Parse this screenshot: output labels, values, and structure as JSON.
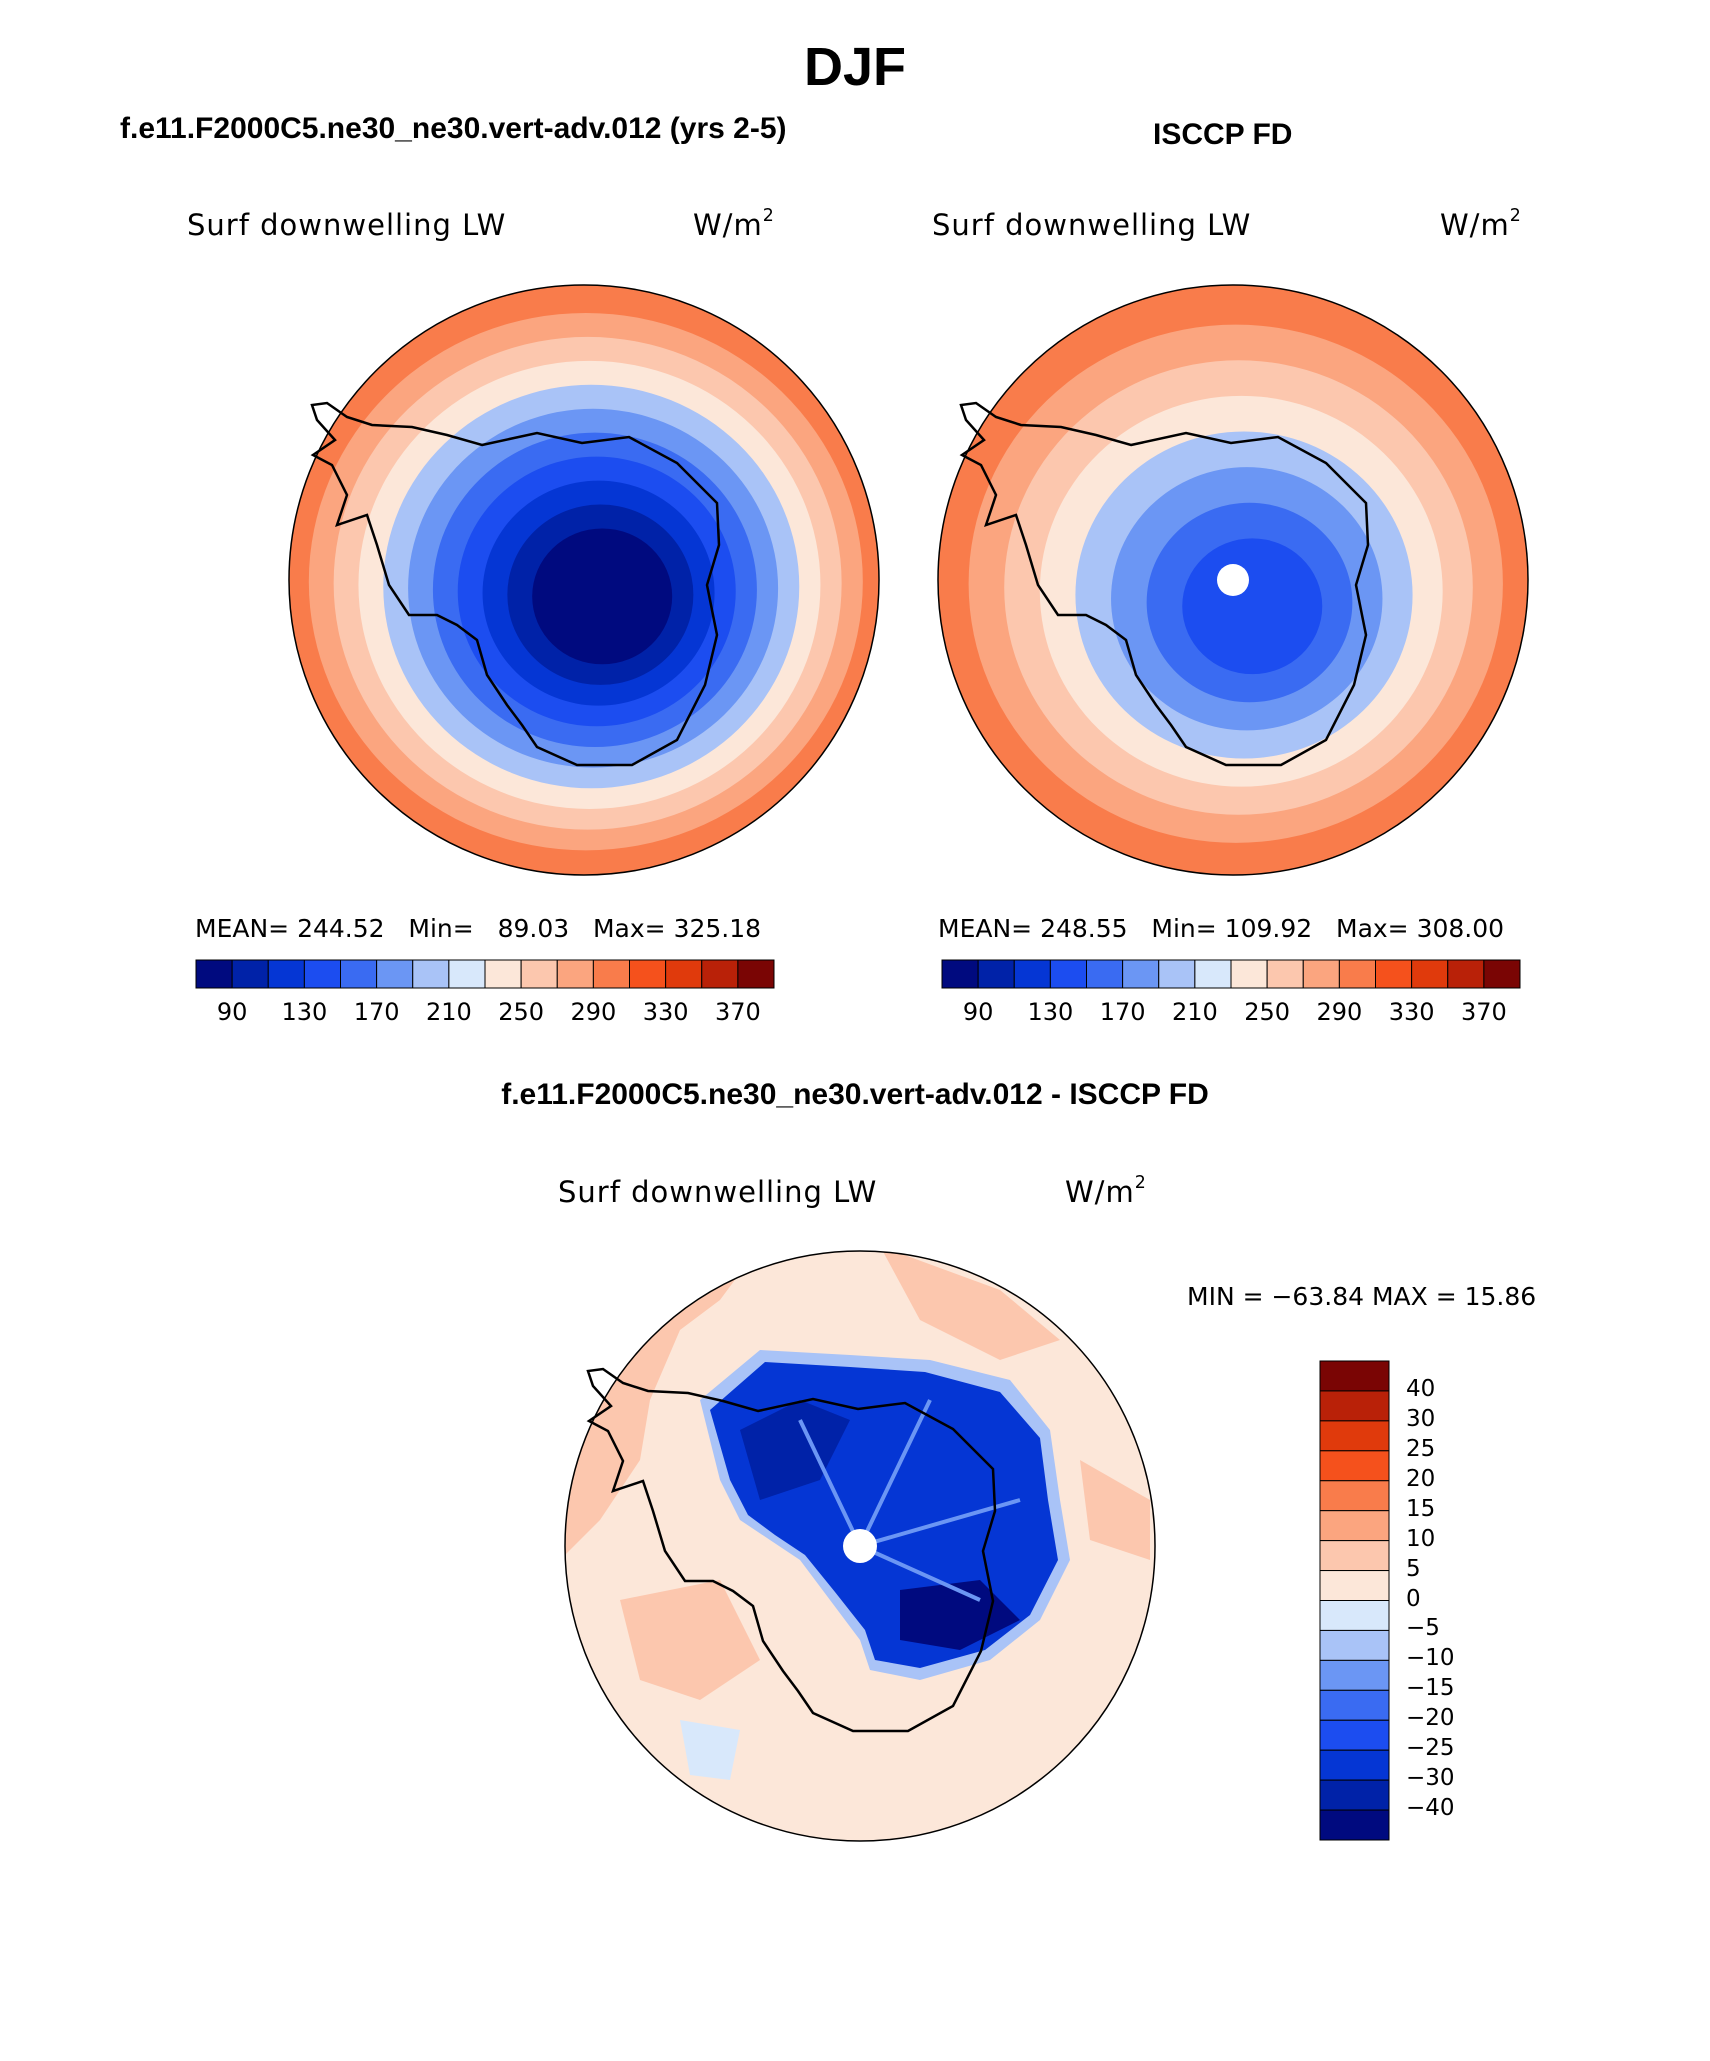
{
  "title": "DJF",
  "panels": [
    {
      "id": "model",
      "subtitle": "f.e11.F2000C5.ne30_ne30.vert-adv.012 (yrs 2-5)",
      "variable": "Surf downwelling LW",
      "units": "W/m",
      "units_exp": "2",
      "stats": {
        "mean_label": "MEAN=",
        "mean": "244.52",
        "min_label": "Min=",
        "min": "89.03",
        "max_label": "Max=",
        "max": "325.18"
      }
    },
    {
      "id": "obs",
      "subtitle": "ISCCP FD",
      "variable": "Surf downwelling LW",
      "units": "W/m",
      "units_exp": "2",
      "stats": {
        "mean_label": "MEAN=",
        "mean": "248.55",
        "min_label": "Min=",
        "min": "109.92",
        "max_label": "Max=",
        "max": "308.00"
      }
    },
    {
      "id": "diff",
      "subtitle": "f.e11.F2000C5.ne30_ne30.vert-adv.012 - ISCCP FD",
      "variable": "Surf downwelling LW",
      "units": "W/m",
      "units_exp": "2",
      "minmax": "MIN = −63.84 MAX =   15.86"
    }
  ],
  "colorbar_abs": {
    "ticks": [
      "90",
      "130",
      "170",
      "210",
      "250",
      "290",
      "330",
      "370"
    ],
    "colors": [
      "#000a7f",
      "#0022a8",
      "#0536d4",
      "#1c4df0",
      "#3a6bf2",
      "#6b96f4",
      "#a9c3f7",
      "#d8e8fb",
      "#fce7d9",
      "#fcc7ae",
      "#fba57f",
      "#f97c4b",
      "#f5511c",
      "#e03a0c",
      "#b92108",
      "#7a0504"
    ]
  },
  "colorbar_diff": {
    "labels": [
      "40",
      "30",
      "25",
      "20",
      "15",
      "10",
      "5",
      "0",
      "−5",
      "−10",
      "−15",
      "−20",
      "−25",
      "−30",
      "−40"
    ],
    "colors": [
      "#7a0504",
      "#b92108",
      "#e03a0c",
      "#f5511c",
      "#f97c4b",
      "#fba57f",
      "#fcc7ae",
      "#fce7d9",
      "#d8e8fb",
      "#a9c3f7",
      "#6b96f4",
      "#3a6bf2",
      "#1c4df0",
      "#0536d4",
      "#0022a8",
      "#000a7f"
    ]
  },
  "map_fields": {
    "model_rings": [
      "#f97c4b",
      "#fba57f",
      "#fcc7ae",
      "#fce7d9",
      "#a9c3f7",
      "#6b96f4",
      "#3a6bf2",
      "#1c4df0",
      "#0536d4",
      "#0022a8",
      "#000a7f"
    ],
    "obs_rings": [
      "#f97c4b",
      "#fba57f",
      "#fcc7ae",
      "#fce7d9",
      "#a9c3f7",
      "#6b96f4",
      "#3a6bf2",
      "#1c4df0"
    ],
    "diff_background": "#fce7d9",
    "diff_ocean_warm": "#fcc7ae",
    "diff_ice_cold": "#0536d4"
  }
}
